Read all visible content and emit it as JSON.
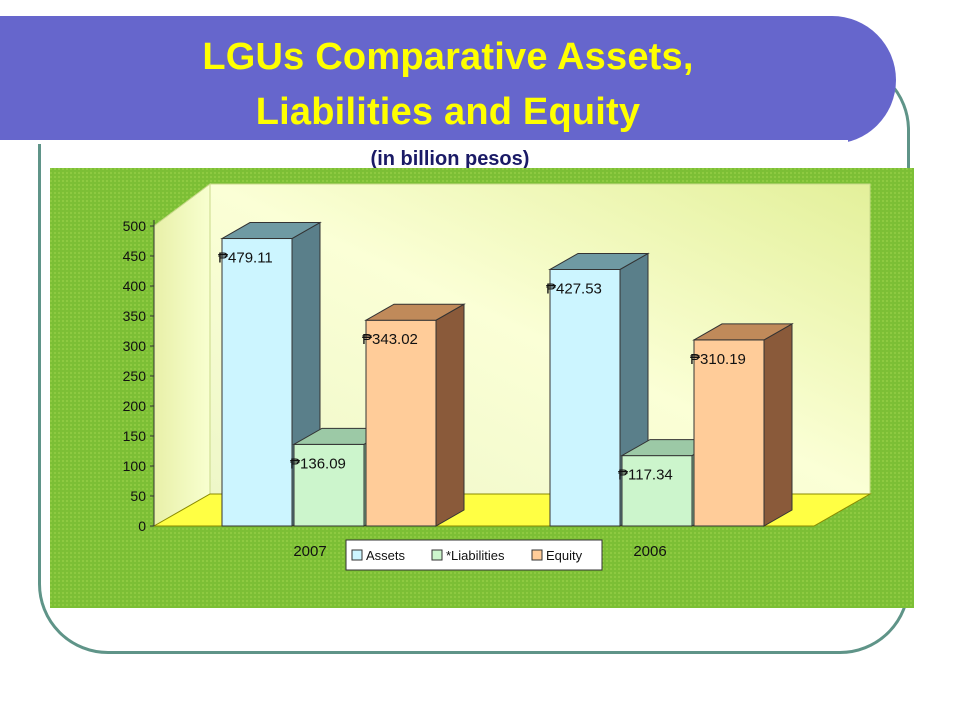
{
  "slide": {
    "title_line_1": "LGUs Comparative Assets,",
    "title_line_2": "Liabilities and Equity",
    "subtitle": "(in billion pesos)"
  },
  "colors": {
    "banner": "#6666cc",
    "title_text": "#ffff00",
    "panel": "#77bb33",
    "assets": "#ccf5ff",
    "liabilities": "#ccf5cc",
    "equity": "#ffcc99"
  },
  "chart_data": {
    "type": "bar",
    "categories": [
      "2007",
      "2006"
    ],
    "series": [
      {
        "name": "Assets",
        "values": [
          479.11,
          427.53
        ],
        "labels": [
          "₱479.11",
          "₱427.53"
        ]
      },
      {
        "name": "*Liabilities",
        "values": [
          136.09,
          117.34
        ],
        "labels": [
          "₱136.09",
          "₱117.34"
        ]
      },
      {
        "name": "Equity",
        "values": [
          343.02,
          310.19
        ],
        "labels": [
          "₱343.02",
          "₱310.19"
        ]
      }
    ],
    "ylim": [
      0,
      500
    ],
    "yticks": [
      "0",
      "50",
      "100",
      "150",
      "200",
      "250",
      "300",
      "350",
      "400",
      "450",
      "500"
    ],
    "legend_position": "bottom-center",
    "grid": false,
    "style": "3d"
  }
}
